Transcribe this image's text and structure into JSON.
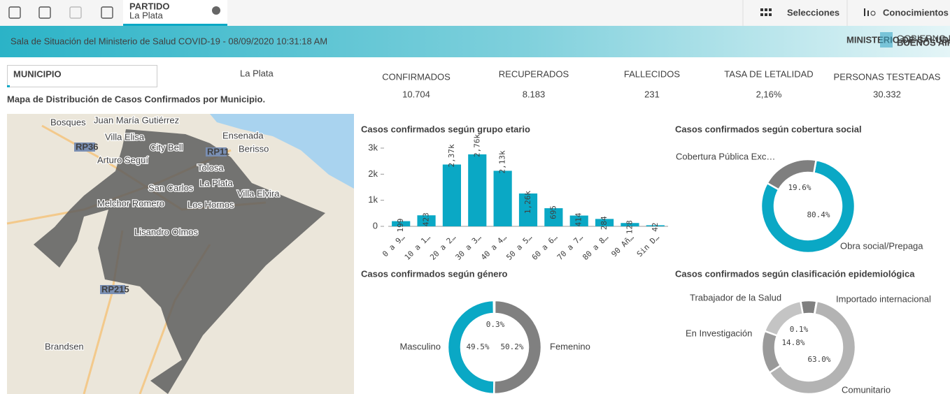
{
  "toolbar": {
    "tab_title": "PARTIDO",
    "tab_value": "La Plata",
    "selections": "Selecciones",
    "insights": "Conocimientos"
  },
  "header": {
    "title": "Sala de Situación del Ministerio de Salud COVID-19 - 08/09/2020 10:31:18 AM",
    "logo_ministry": "MINISTERIO DE SALUD",
    "logo_province": "GOBIERNO DE LA PROVINCIA DE",
    "logo_name": "BUENOS AIRES"
  },
  "filter": {
    "label": "MUNICIPIO",
    "value": "La Plata"
  },
  "map": {
    "title": "Mapa de Distribución de Casos Confirmados por Municipio.",
    "places": [
      "Bosques",
      "Juan María Gutiérrez",
      "Villa Elisa",
      "City Bell",
      "Ensenada",
      "Berisso",
      "Arturo Seguí",
      "Tolosa",
      "La Plata",
      "Villa Elvira",
      "San Carlos",
      "Melchor Romero",
      "Los Hornos",
      "Lisandro Olmos",
      "Brandsen"
    ],
    "roads": [
      "RP36",
      "RP11",
      "RP215"
    ]
  },
  "kpis": [
    {
      "label": "CONFIRMADOS",
      "value": "10.704"
    },
    {
      "label": "RECUPERADOS",
      "value": "8.183"
    },
    {
      "label": "FALLECIDOS",
      "value": "231"
    },
    {
      "label": "TASA DE LETALIDAD",
      "value": "2,16%"
    },
    {
      "label": "PERSONAS TESTEADAS",
      "value": "30.332"
    }
  ],
  "chart_data": [
    {
      "type": "bar",
      "title": "Casos confirmados según grupo etario",
      "categories": [
        "0 a 9…",
        "10 a 1…",
        "20 a 2…",
        "30 a 3…",
        "40 a 4…",
        "50 a 5…",
        "60 a 6…",
        "70 a 7…",
        "80 a 8…",
        "90 Añ…",
        "Sin D…"
      ],
      "values": [
        199,
        423,
        2370,
        2760,
        2130,
        1260,
        695,
        414,
        284,
        128,
        42
      ],
      "value_labels": [
        "199",
        "423",
        "2,37k",
        "2,76k",
        "2,13k",
        "1,26k",
        "695",
        "414",
        "284",
        "128",
        "42"
      ],
      "color": "#0aa8c5",
      "ylim": [
        0,
        3000
      ],
      "yticks": [
        0,
        {
          "value": 1000,
          "label": "1k"
        },
        {
          "value": 2000,
          "label": "2k"
        },
        {
          "value": 3000,
          "label": "3k"
        }
      ]
    },
    {
      "type": "donut",
      "title": "Casos confirmados según cobertura social",
      "categories": [
        "Obra social/Prepaga",
        "Cobertura Pública Exc…"
      ],
      "values": [
        80.4,
        19.6
      ],
      "value_labels": [
        "80.4%",
        "19.6%"
      ],
      "colors": [
        "#0aa8c5",
        "#7f7f7f"
      ]
    },
    {
      "type": "donut",
      "title": "Casos confirmados según género",
      "categories": [
        "Femenino",
        "Masculino",
        null
      ],
      "values": [
        50.2,
        49.5,
        0.3
      ],
      "value_labels": [
        "50.2%",
        "49.5%",
        "0.3%"
      ],
      "colors": [
        "#808080",
        "#0aa8c5",
        "#b3b3b3"
      ]
    },
    {
      "type": "donut",
      "title": "Casos confirmados según clasificación epidemiológica",
      "categories": [
        null,
        "Importado internacional",
        "Comunitario",
        "En Investigación",
        "Trabajador de la Salud"
      ],
      "values": [
        5.5,
        0.1,
        63.0,
        14.8,
        16.6
      ],
      "value_labels": [
        null,
        "0.1%",
        "63.0%",
        "14.8%",
        null
      ],
      "colors": [
        "#808080",
        "#999999",
        "#b3b3b3",
        "#9a9a9a",
        "#c4c4c4"
      ]
    }
  ]
}
